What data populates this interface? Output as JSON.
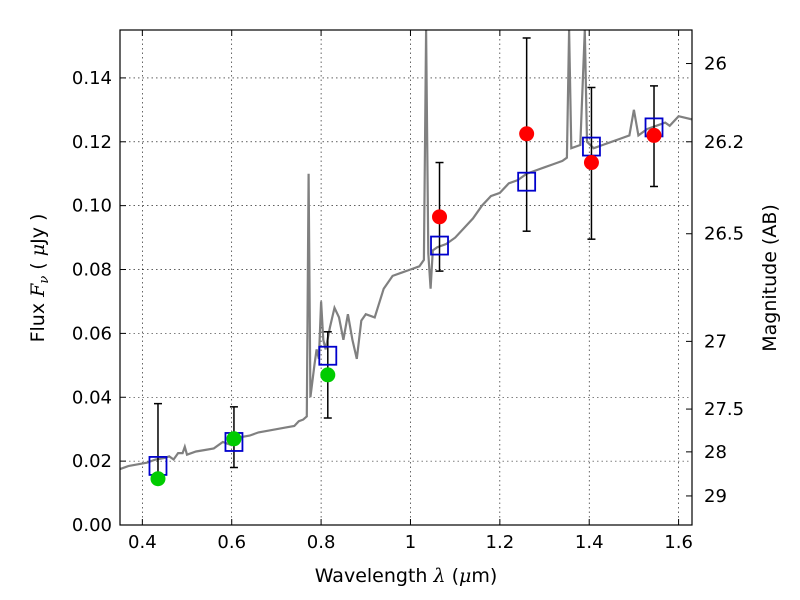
{
  "chart_data": {
    "type": "scatter",
    "xlabel": "Wavelength  λ (μm)",
    "ylabel": "Flux  Fν  ( μJy )",
    "ylabel_right": "Magnitude (AB)",
    "xlim": [
      0.35,
      1.63
    ],
    "ylim": [
      0.0,
      0.155
    ],
    "grid": true,
    "x_ticks": [
      0.4,
      0.6,
      0.8,
      1.0,
      1.2,
      1.4,
      1.6
    ],
    "x_tick_labels": [
      "0.4",
      "0.6",
      "0.8",
      "1",
      "1.2",
      "1.4",
      "1.6"
    ],
    "y_ticks": [
      0.0,
      0.02,
      0.04,
      0.06,
      0.08,
      0.1,
      0.12,
      0.14
    ],
    "y_tick_labels": [
      "0.00",
      "0.02",
      "0.04",
      "0.06",
      "0.08",
      "0.10",
      "0.12",
      "0.14"
    ],
    "right_ticks": [
      {
        "label": "26",
        "flux": 0.1445
      },
      {
        "label": "26.2",
        "flux": 0.12
      },
      {
        "label": "26.5",
        "flux": 0.0912
      },
      {
        "label": "27",
        "flux": 0.0575
      },
      {
        "label": "27.5",
        "flux": 0.0363
      },
      {
        "label": "28",
        "flux": 0.0229
      },
      {
        "label": "29",
        "flux": 0.0091
      }
    ],
    "model_spectrum": {
      "color": "#808080",
      "points": [
        [
          0.35,
          0.0175
        ],
        [
          0.37,
          0.0185
        ],
        [
          0.39,
          0.019
        ],
        [
          0.41,
          0.0195
        ],
        [
          0.43,
          0.0205
        ],
        [
          0.45,
          0.021
        ],
        [
          0.46,
          0.0215
        ],
        [
          0.47,
          0.0205
        ],
        [
          0.48,
          0.0225
        ],
        [
          0.49,
          0.0225
        ],
        [
          0.495,
          0.0245
        ],
        [
          0.5,
          0.022
        ],
        [
          0.52,
          0.023
        ],
        [
          0.54,
          0.0235
        ],
        [
          0.56,
          0.024
        ],
        [
          0.58,
          0.026
        ],
        [
          0.6,
          0.025
        ],
        [
          0.62,
          0.0275
        ],
        [
          0.64,
          0.028
        ],
        [
          0.66,
          0.029
        ],
        [
          0.68,
          0.0295
        ],
        [
          0.7,
          0.03
        ],
        [
          0.72,
          0.0305
        ],
        [
          0.74,
          0.031
        ],
        [
          0.75,
          0.0325
        ],
        [
          0.76,
          0.033
        ],
        [
          0.768,
          0.034
        ],
        [
          0.772,
          0.11
        ],
        [
          0.776,
          0.04
        ],
        [
          0.785,
          0.05
        ],
        [
          0.79,
          0.055
        ],
        [
          0.795,
          0.052
        ],
        [
          0.8,
          0.07
        ],
        [
          0.805,
          0.058
        ],
        [
          0.81,
          0.055
        ],
        [
          0.82,
          0.062
        ],
        [
          0.83,
          0.068
        ],
        [
          0.84,
          0.065
        ],
        [
          0.85,
          0.058
        ],
        [
          0.86,
          0.066
        ],
        [
          0.87,
          0.058
        ],
        [
          0.88,
          0.052
        ],
        [
          0.89,
          0.064
        ],
        [
          0.9,
          0.066
        ],
        [
          0.92,
          0.065
        ],
        [
          0.94,
          0.074
        ],
        [
          0.96,
          0.078
        ],
        [
          0.98,
          0.079
        ],
        [
          1.0,
          0.08
        ],
        [
          1.02,
          0.081
        ],
        [
          1.03,
          0.083
        ],
        [
          1.035,
          0.155
        ],
        [
          1.04,
          0.085
        ],
        [
          1.045,
          0.074
        ],
        [
          1.05,
          0.086
        ],
        [
          1.06,
          0.087
        ],
        [
          1.08,
          0.088
        ],
        [
          1.1,
          0.09
        ],
        [
          1.12,
          0.093
        ],
        [
          1.14,
          0.096
        ],
        [
          1.16,
          0.1
        ],
        [
          1.18,
          0.103
        ],
        [
          1.2,
          0.104
        ],
        [
          1.22,
          0.107
        ],
        [
          1.24,
          0.108
        ],
        [
          1.26,
          0.11
        ],
        [
          1.28,
          0.111
        ],
        [
          1.3,
          0.112
        ],
        [
          1.32,
          0.113
        ],
        [
          1.34,
          0.114
        ],
        [
          1.35,
          0.115
        ],
        [
          1.355,
          0.155
        ],
        [
          1.36,
          0.118
        ],
        [
          1.38,
          0.119
        ],
        [
          1.39,
          0.155
        ],
        [
          1.395,
          0.12
        ],
        [
          1.41,
          0.118
        ],
        [
          1.43,
          0.119
        ],
        [
          1.45,
          0.12
        ],
        [
          1.47,
          0.121
        ],
        [
          1.49,
          0.122
        ],
        [
          1.5,
          0.13
        ],
        [
          1.51,
          0.122
        ],
        [
          1.53,
          0.124
        ],
        [
          1.55,
          0.125
        ],
        [
          1.57,
          0.126
        ],
        [
          1.58,
          0.125
        ],
        [
          1.6,
          0.128
        ],
        [
          1.63,
          0.127
        ]
      ]
    },
    "series": [
      {
        "marker": "open-square",
        "color": "#0000cc",
        "points": [
          {
            "x": 0.435,
            "y": 0.0185
          },
          {
            "x": 0.605,
            "y": 0.026
          },
          {
            "x": 0.815,
            "y": 0.053
          },
          {
            "x": 1.065,
            "y": 0.0875
          },
          {
            "x": 1.26,
            "y": 0.1075
          },
          {
            "x": 1.405,
            "y": 0.1185
          },
          {
            "x": 1.545,
            "y": 0.1245
          }
        ]
      },
      {
        "marker": "filled-circle",
        "color": "#00cc00",
        "points": [
          {
            "x": 0.435,
            "y": 0.0145,
            "err_low": 0.0145,
            "err_high": 0.038
          },
          {
            "x": 0.605,
            "y": 0.027,
            "err_low": 0.018,
            "err_high": 0.037
          },
          {
            "x": 0.815,
            "y": 0.047,
            "err_low": 0.0335,
            "err_high": 0.0605
          }
        ]
      },
      {
        "marker": "filled-circle",
        "color": "#ff0000",
        "points": [
          {
            "x": 1.065,
            "y": 0.0965,
            "err_low": 0.0795,
            "err_high": 0.1135
          },
          {
            "x": 1.26,
            "y": 0.1225,
            "err_low": 0.092,
            "err_high": 0.1525
          },
          {
            "x": 1.405,
            "y": 0.1135,
            "err_low": 0.0895,
            "err_high": 0.137
          },
          {
            "x": 1.545,
            "y": 0.122,
            "err_low": 0.106,
            "err_high": 0.1375
          }
        ]
      }
    ]
  }
}
